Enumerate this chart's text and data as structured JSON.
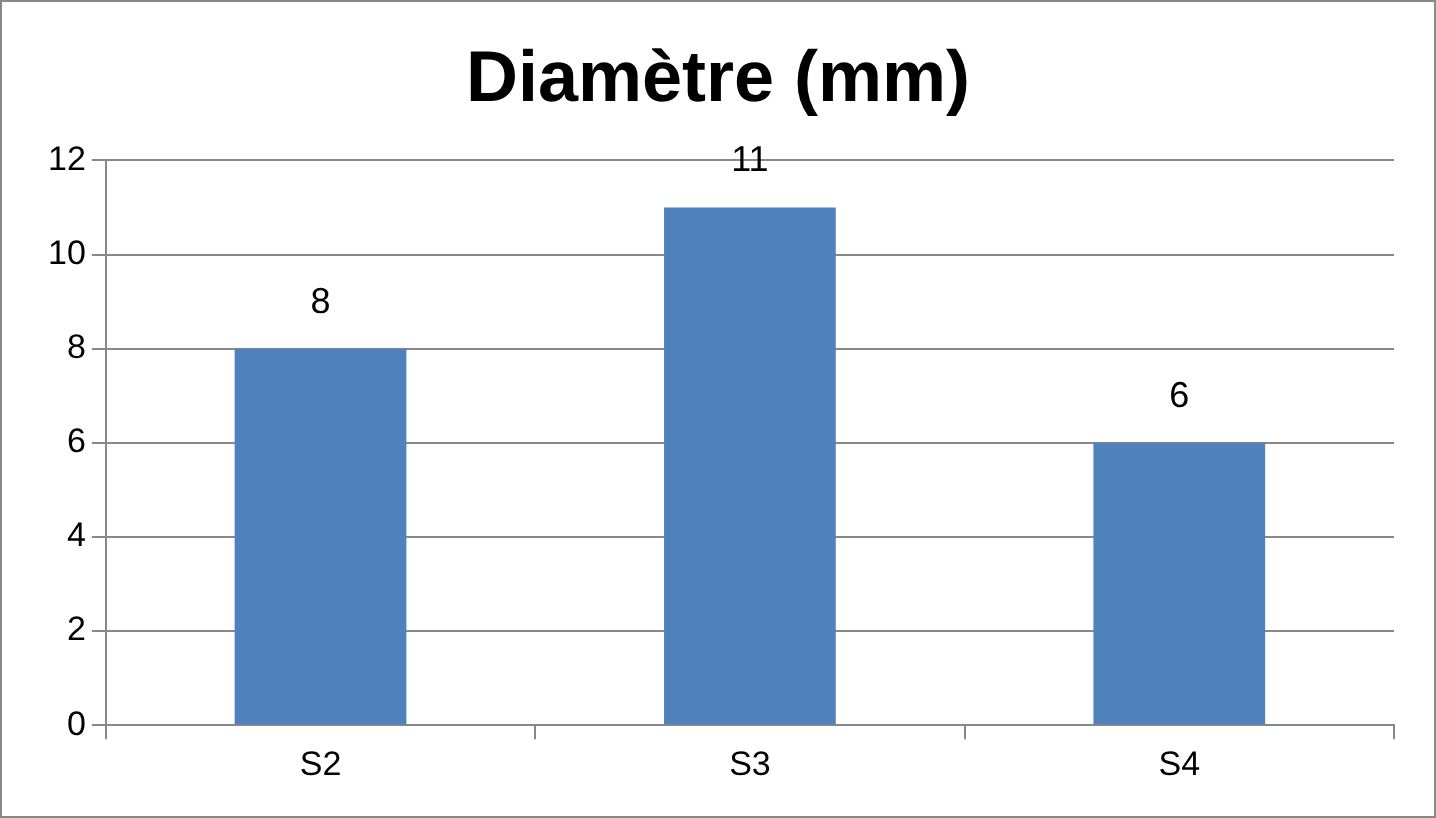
{
  "chart_data": {
    "type": "bar",
    "title": "Diamètre (mm)",
    "categories": [
      "S2",
      "S3",
      "S4"
    ],
    "values": [
      8,
      11,
      6
    ],
    "color": "#4f81bd",
    "ylim": [
      0,
      12
    ],
    "yticks": [
      0,
      2,
      4,
      6,
      8,
      10,
      12
    ],
    "grid": "y",
    "data_labels": true,
    "legend": false
  }
}
